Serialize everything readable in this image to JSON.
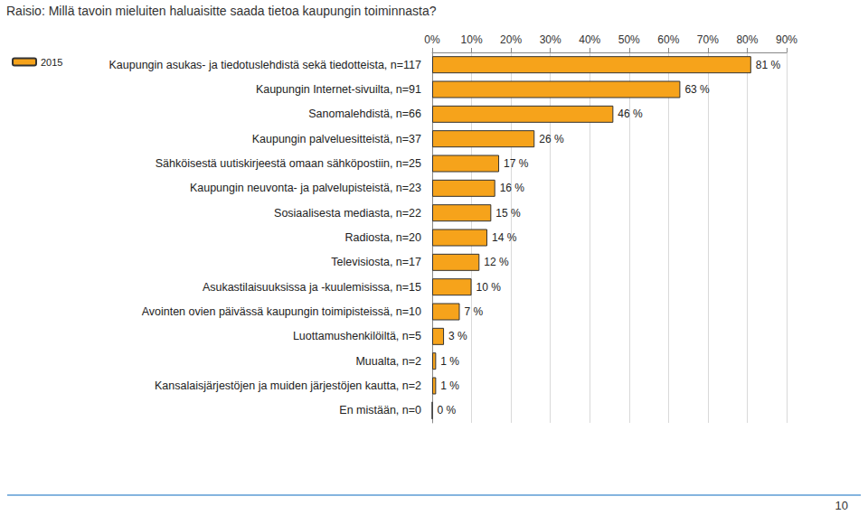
{
  "chart_data": {
    "type": "bar",
    "title": "Raisio: Millä tavoin mieluiten haluaisitte saada tietoa kaupungin toiminnasta?",
    "orientation": "horizontal",
    "categories": [
      "Kaupungin asukas- ja tiedotuslehdistä sekä tiedotteista, n=117",
      "Kaupungin Internet-sivuilta, n=91",
      "Sanomalehdistä, n=66",
      "Kaupungin palveluesitteistä, n=37",
      "Sähköisestä uutiskirjeestä omaan sähköpostiin, n=25",
      "Kaupungin neuvonta- ja palvelupisteistä, n=23",
      "Sosiaalisesta mediasta, n=22",
      "Radiosta, n=20",
      "Televisiosta, n=17",
      "Asukastilaisuuksissa ja -kuulemisissa, n=15",
      "Avointen ovien päivässä kaupungin toimipisteissä, n=10",
      "Luottamushenkilöiltä, n=5",
      "Muualta, n=2",
      "Kansalaisjärjestöjen ja muiden järjestöjen kautta, n=2",
      "En mistään, n=0"
    ],
    "series": [
      {
        "name": "2015",
        "color": "#f6a31b",
        "values": [
          81,
          63,
          46,
          26,
          17,
          16,
          15,
          14,
          12,
          10,
          7,
          3,
          1,
          1,
          0
        ],
        "value_labels": [
          "81 %",
          "63 %",
          "46 %",
          "26 %",
          "17 %",
          "16 %",
          "15 %",
          "14 %",
          "12 %",
          "10 %",
          "7 %",
          "3 %",
          "1 %",
          "1 %",
          "0 %"
        ]
      }
    ],
    "xlim": [
      0,
      90
    ],
    "xticks": [
      {
        "value": 0,
        "label": "0%"
      },
      {
        "value": 10,
        "label": "10%"
      },
      {
        "value": 20,
        "label": "20%"
      },
      {
        "value": 30,
        "label": "30%"
      },
      {
        "value": 40,
        "label": "40%"
      },
      {
        "value": 50,
        "label": "50%"
      },
      {
        "value": 60,
        "label": "60%"
      },
      {
        "value": 70,
        "label": "70%"
      },
      {
        "value": 80,
        "label": "80%"
      },
      {
        "value": 90,
        "label": "90%"
      }
    ],
    "grid": true,
    "legend": "top-left",
    "data_labels": true,
    "annotations": [
      "10"
    ]
  }
}
